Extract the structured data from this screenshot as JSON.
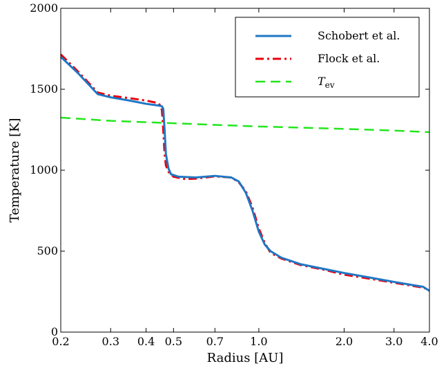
{
  "chart_data": {
    "type": "line",
    "xlabel": "Radius [AU]",
    "ylabel": "Temperature [K]",
    "xscale": "log",
    "xlim": [
      0.2,
      4.0
    ],
    "ylim": [
      0,
      2000
    ],
    "x_ticks": [
      0.2,
      0.3,
      0.4,
      0.5,
      0.7,
      1.0,
      2.0,
      3.0,
      4.0
    ],
    "x_tick_labels": [
      "0.2",
      "0.3",
      "0.4",
      "0.5",
      "0.7",
      "1.0",
      "2.0",
      "3.0",
      "4.0"
    ],
    "y_ticks": [
      0,
      500,
      1000,
      1500,
      2000
    ],
    "y_tick_labels": [
      "0",
      "500",
      "1000",
      "1500",
      "2000"
    ],
    "grid": false,
    "legend_position": "top-right",
    "series": [
      {
        "name": "Schobert et al.",
        "color": "#1f77c4",
        "style": "solid",
        "points": [
          [
            0.2,
            1700
          ],
          [
            0.23,
            1600
          ],
          [
            0.27,
            1470
          ],
          [
            0.3,
            1450
          ],
          [
            0.35,
            1430
          ],
          [
            0.4,
            1410
          ],
          [
            0.44,
            1400
          ],
          [
            0.455,
            1395
          ],
          [
            0.46,
            1380
          ],
          [
            0.465,
            1250
          ],
          [
            0.47,
            1100
          ],
          [
            0.48,
            1010
          ],
          [
            0.49,
            975
          ],
          [
            0.52,
            960
          ],
          [
            0.6,
            955
          ],
          [
            0.7,
            965
          ],
          [
            0.8,
            955
          ],
          [
            0.85,
            930
          ],
          [
            0.9,
            860
          ],
          [
            0.95,
            750
          ],
          [
            1.0,
            620
          ],
          [
            1.05,
            540
          ],
          [
            1.1,
            500
          ],
          [
            1.2,
            460
          ],
          [
            1.4,
            420
          ],
          [
            1.7,
            390
          ],
          [
            2.0,
            365
          ],
          [
            2.5,
            335
          ],
          [
            3.0,
            310
          ],
          [
            3.5,
            290
          ],
          [
            3.8,
            280
          ],
          [
            4.0,
            255
          ]
        ]
      },
      {
        "name": "Flock et al.",
        "color": "#e8000b",
        "style": "dashdot",
        "points": [
          [
            0.2,
            1715
          ],
          [
            0.23,
            1610
          ],
          [
            0.27,
            1480
          ],
          [
            0.3,
            1460
          ],
          [
            0.35,
            1445
          ],
          [
            0.4,
            1430
          ],
          [
            0.44,
            1415
          ],
          [
            0.45,
            1400
          ],
          [
            0.455,
            1370
          ],
          [
            0.46,
            1250
          ],
          [
            0.465,
            1100
          ],
          [
            0.47,
            1030
          ],
          [
            0.48,
            990
          ],
          [
            0.5,
            960
          ],
          [
            0.55,
            945
          ],
          [
            0.6,
            948
          ],
          [
            0.7,
            962
          ],
          [
            0.8,
            955
          ],
          [
            0.85,
            925
          ],
          [
            0.9,
            870
          ],
          [
            0.95,
            770
          ],
          [
            1.0,
            640
          ],
          [
            1.05,
            550
          ],
          [
            1.1,
            490
          ],
          [
            1.2,
            455
          ],
          [
            1.4,
            415
          ],
          [
            1.7,
            385
          ],
          [
            2.0,
            355
          ],
          [
            2.5,
            328
          ],
          [
            3.0,
            305
          ],
          [
            3.5,
            285
          ],
          [
            3.8,
            275
          ],
          [
            4.0,
            260
          ]
        ]
      },
      {
        "name": "T",
        "name_subscript": "ev",
        "color": "#22e61c",
        "style": "dashed",
        "points": [
          [
            0.2,
            1325
          ],
          [
            0.3,
            1305
          ],
          [
            0.5,
            1290
          ],
          [
            0.7,
            1280
          ],
          [
            1.0,
            1270
          ],
          [
            2.0,
            1255
          ],
          [
            3.0,
            1245
          ],
          [
            4.0,
            1235
          ]
        ]
      }
    ]
  }
}
